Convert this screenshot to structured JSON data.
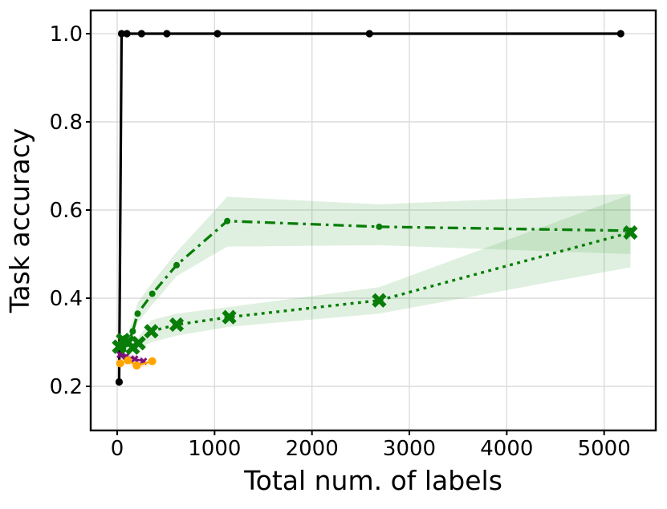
{
  "figure": {
    "background": "#ffffff"
  },
  "chart_data": {
    "type": "line",
    "title": "",
    "xlabel": "Total num. of labels",
    "ylabel": "Task accuracy",
    "xlim": [
      -272,
      5530
    ],
    "ylim": [
      0.1,
      1.0527
    ],
    "xticks": [
      0,
      1000,
      2000,
      3000,
      4000,
      5000
    ],
    "xtick_labels": [
      "0",
      "1000",
      "2000",
      "3000",
      "4000",
      "5000"
    ],
    "yticks": [
      0.2,
      0.4,
      0.6,
      0.8,
      1.0
    ],
    "ytick_labels": [
      "0.2",
      "0.4",
      "0.6",
      "0.8",
      "1.0"
    ],
    "grid": true,
    "grid_color": "#dcdcdc",
    "spine_color": "#000000",
    "legend": "none",
    "series": [
      {
        "name": "black-solid-circles",
        "color": "#000000",
        "linestyle": "solid",
        "linewidth": 3.2,
        "marker": "circle",
        "marker_size": 4.6,
        "x": [
          20,
          45,
          100,
          250,
          510,
          1030,
          2590,
          5170
        ],
        "y": [
          0.21,
          1.0,
          1.0,
          1.0,
          1.0,
          1.0,
          1.0,
          1.0
        ]
      },
      {
        "name": "purple-solid-x",
        "color": "#7c0f7c",
        "linestyle": "solid",
        "linewidth": 2.3,
        "marker": "x",
        "marker_size": 3.6,
        "x": [
          30,
          90,
          180,
          270
        ],
        "y": [
          0.272,
          0.268,
          0.262,
          0.257
        ],
        "band_lo": [
          0.263,
          0.259,
          0.253,
          0.248
        ],
        "band_hi": [
          0.281,
          0.277,
          0.271,
          0.266
        ],
        "band_color": "#d58fd5",
        "band_opacity": 0.3
      },
      {
        "name": "orange-solid-circles",
        "color": "#ffa500",
        "linestyle": "solid",
        "linewidth": 2.3,
        "marker": "circle",
        "marker_size": 5,
        "x": [
          30,
          110,
          200,
          360
        ],
        "y": [
          0.252,
          0.259,
          0.247,
          0.257
        ],
        "band_lo": [
          0.244,
          0.251,
          0.239,
          0.249
        ],
        "band_hi": [
          0.26,
          0.267,
          0.255,
          0.265
        ],
        "band_color": "#ffc97e",
        "band_opacity": 0.35
      },
      {
        "name": "green-dashdot-circles",
        "color": "#087d08",
        "linestyle": "dashdot",
        "linewidth": 3.3,
        "marker": "circle",
        "marker_size": 4,
        "x": [
          60,
          110,
          160,
          210,
          360,
          610,
          1130,
          2690,
          5270
        ],
        "y": [
          0.285,
          0.297,
          0.325,
          0.365,
          0.41,
          0.475,
          0.575,
          0.562,
          0.553
        ],
        "band_lo": [
          0.275,
          0.285,
          0.305,
          0.345,
          0.385,
          0.45,
          0.517,
          0.52,
          0.5
        ],
        "band_hi": [
          0.3,
          0.32,
          0.35,
          0.39,
          0.435,
          0.505,
          0.63,
          0.613,
          0.637
        ],
        "band_color": "#3ca13c",
        "band_opacity": 0.16
      },
      {
        "name": "green-dotted-X",
        "color": "#087d08",
        "linestyle": "dotted",
        "linewidth": 3.4,
        "marker": "X",
        "marker_size": 7,
        "x": [
          20,
          60,
          110,
          160,
          220,
          350,
          610,
          1150,
          2690,
          5270
        ],
        "y": [
          0.29,
          0.305,
          0.3,
          0.288,
          0.298,
          0.325,
          0.34,
          0.357,
          0.395,
          0.549
        ],
        "band_lo": [
          0.28,
          0.295,
          0.29,
          0.278,
          0.285,
          0.3,
          0.315,
          0.335,
          0.365,
          0.47
        ],
        "band_hi": [
          0.3,
          0.315,
          0.31,
          0.298,
          0.312,
          0.35,
          0.365,
          0.38,
          0.425,
          0.635
        ],
        "band_color": "#3ca13c",
        "band_opacity": 0.16
      }
    ],
    "axes_style": {
      "tick_font_size": 26,
      "label_font_size": 33,
      "tick_length": 6,
      "tick_width": 2,
      "spine_width": 2.4
    }
  }
}
